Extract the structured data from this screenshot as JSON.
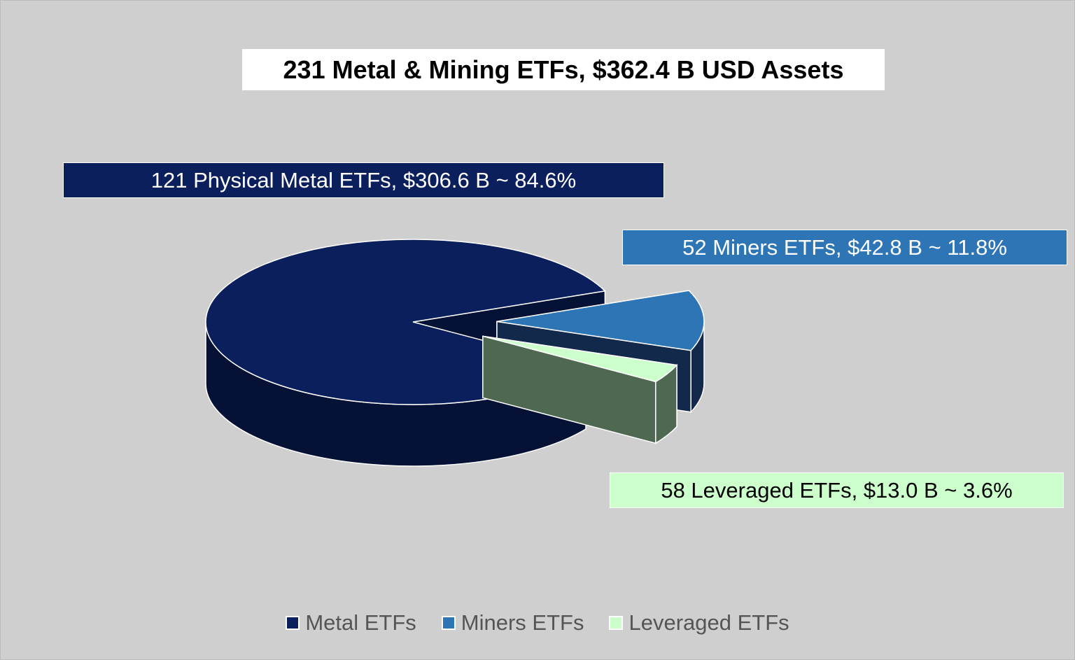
{
  "chart_data": {
    "type": "pie",
    "title": "231 Metal & Mining ETFs, $362.4 B USD Assets",
    "slices": [
      {
        "name": "Metal ETFs",
        "label": "121 Physical Metal ETFs, $306.6 B ~ 84.6%",
        "value": 306.6,
        "percent": 84.6,
        "color": "#0b1f5c",
        "side_color": "#061136"
      },
      {
        "name": "Miners ETFs",
        "label": "52 Miners ETFs,  $42.8 B ~ 11.8%",
        "value": 42.8,
        "percent": 11.8,
        "color": "#2e75b6",
        "side_color": "#13294b"
      },
      {
        "name": "Leveraged ETFs",
        "label": "58 Leveraged ETFs, $13.0 B ~ 3.6%",
        "value": 13.0,
        "percent": 3.6,
        "color": "#ccffcc",
        "side_color": "#4e6851"
      }
    ],
    "legend": [
      "Metal ETFs",
      "Miners ETFs",
      "Leveraged ETFs"
    ],
    "legend_position": "bottom",
    "style": "3d-exploded"
  }
}
